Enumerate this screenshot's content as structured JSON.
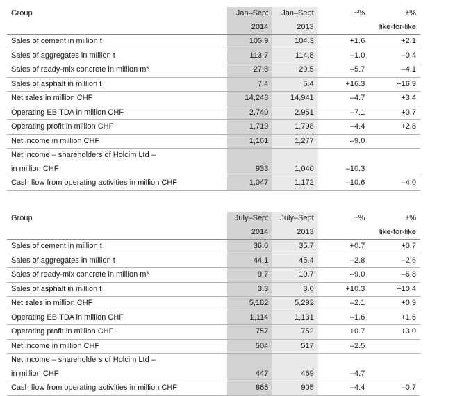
{
  "tables": [
    {
      "header": {
        "group": "Group",
        "y1_line1": "Jan–Sept",
        "y1_line2": "2014",
        "y2_line1": "Jan–Sept",
        "y2_line2": "2013",
        "pct": "±%",
        "lfl_line1": "±%",
        "lfl_line2": "like-for-like"
      },
      "rows": [
        {
          "label": "Sales of cement in million t",
          "y1": "105.9",
          "y2": "104.3",
          "pct": "+1.6",
          "lfl": "+2.1"
        },
        {
          "label": "Sales of aggregates in million t",
          "y1": "113.7",
          "y2": "114.8",
          "pct": "–1.0",
          "lfl": "–0.4"
        },
        {
          "label": "Sales of ready-mix concrete in million m³",
          "y1": "27.8",
          "y2": "29.5",
          "pct": "–5.7",
          "lfl": "–4.1"
        },
        {
          "label": "Sales of asphalt in million t",
          "y1": "7.4",
          "y2": "6.4",
          "pct": "+16.3",
          "lfl": "+16.9"
        },
        {
          "label": "Net sales in million CHF",
          "y1": "14,243",
          "y2": "14,941",
          "pct": "–4.7",
          "lfl": "+3.4"
        },
        {
          "label": "Operating EBITDA in million CHF",
          "y1": "2,740",
          "y2": "2,951",
          "pct": "–7.1",
          "lfl": "+0.7"
        },
        {
          "label": "Operating profit in million CHF",
          "y1": "1,719",
          "y2": "1,798",
          "pct": "–4.4",
          "lfl": "+2.8"
        },
        {
          "label": "Net income in million CHF",
          "y1": "1,161",
          "y2": "1,277",
          "pct": "–9.0",
          "lfl": ""
        }
      ],
      "split_row": {
        "label1": "Net income – shareholders of Holcim Ltd –",
        "label2": "in million CHF",
        "y1": "933",
        "y2": "1,040",
        "pct": "–10.3",
        "lfl": ""
      },
      "last_row": {
        "label": "Cash flow from operating activities in million CHF",
        "y1": "1,047",
        "y2": "1,172",
        "pct": "–10.6",
        "lfl": "–4.0"
      }
    },
    {
      "header": {
        "group": "Group",
        "y1_line1": "July–Sept",
        "y1_line2": "2014",
        "y2_line1": "July–Sept",
        "y2_line2": "2013",
        "pct": "±%",
        "lfl_line1": "±%",
        "lfl_line2": "like-for-like"
      },
      "rows": [
        {
          "label": "Sales of cement in million t",
          "y1": "36.0",
          "y2": "35.7",
          "pct": "+0.7",
          "lfl": "+0.7"
        },
        {
          "label": "Sales of aggregates in million t",
          "y1": "44.1",
          "y2": "45.4",
          "pct": "–2.8",
          "lfl": "–2.6"
        },
        {
          "label": "Sales of ready-mix concrete in million m³",
          "y1": "9.7",
          "y2": "10.7",
          "pct": "–9.0",
          "lfl": "–6.8"
        },
        {
          "label": "Sales of asphalt in million t",
          "y1": "3.3",
          "y2": "3.0",
          "pct": "+10.3",
          "lfl": "+10.4"
        },
        {
          "label": "Net sales in million CHF",
          "y1": "5,182",
          "y2": "5,292",
          "pct": "–2.1",
          "lfl": "+0.9"
        },
        {
          "label": "Operating EBITDA in million CHF",
          "y1": "1,114",
          "y2": "1,131",
          "pct": "–1.6",
          "lfl": "+1.6"
        },
        {
          "label": "Operating profit in million CHF",
          "y1": "757",
          "y2": "752",
          "pct": "+0.7",
          "lfl": "+3.0"
        },
        {
          "label": "Net income in million CHF",
          "y1": "504",
          "y2": "517",
          "pct": "–2.5",
          "lfl": ""
        }
      ],
      "split_row": {
        "label1": "Net income – shareholders of Holcim Ltd –",
        "label2": "in million CHF",
        "y1": "447",
        "y2": "469",
        "pct": "–4.7",
        "lfl": ""
      },
      "last_row": {
        "label": "Cash flow from operating activities in million CHF",
        "y1": "865",
        "y2": "905",
        "pct": "–4.4",
        "lfl": "–0.7"
      }
    }
  ]
}
